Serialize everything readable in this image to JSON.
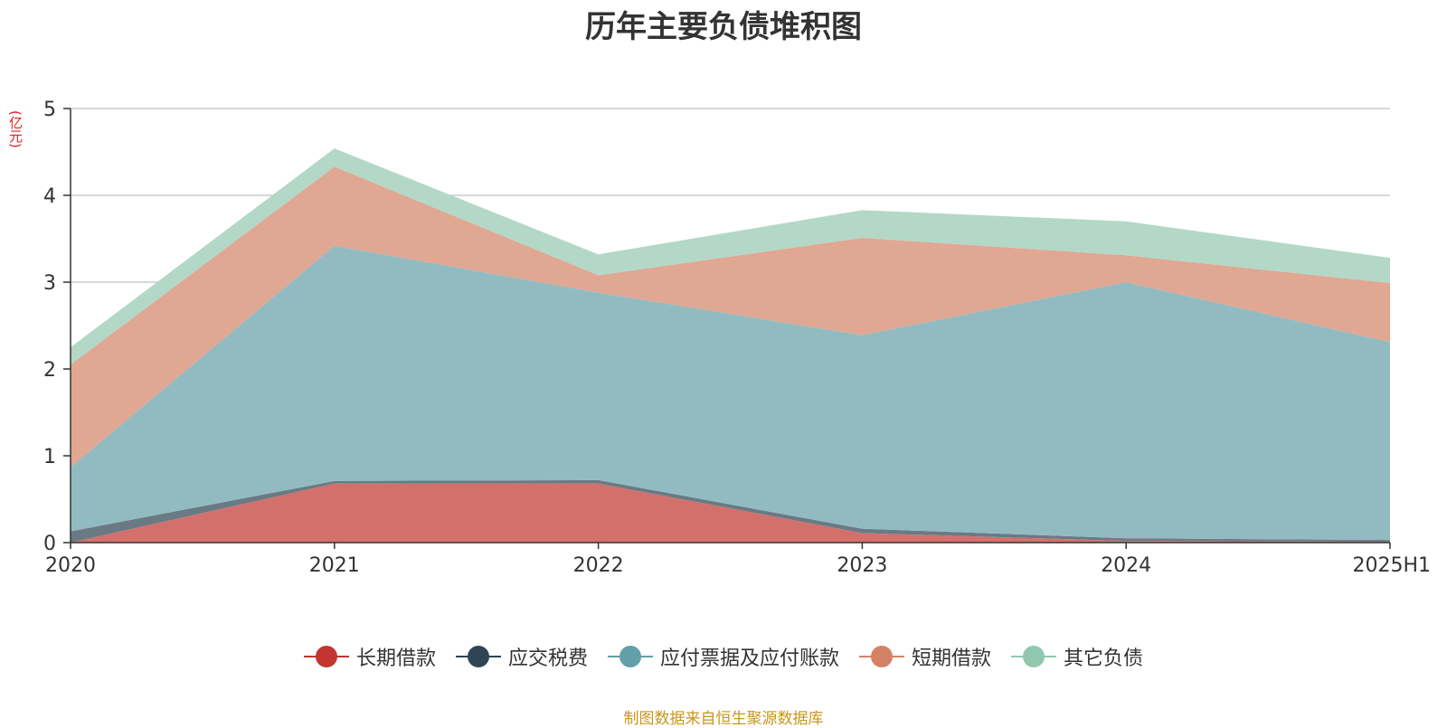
{
  "title": "历年主要负债堆积图",
  "unit_label": "(亿元)",
  "source_note": "制图数据来自恒生聚源数据库",
  "chart_data": {
    "type": "area",
    "stacked": true,
    "title": "历年主要负债堆积图",
    "ylabel": "(亿元)",
    "ylim": [
      0,
      5
    ],
    "yticks": [
      0,
      1,
      2,
      3,
      4,
      5
    ],
    "grid": true,
    "legend_position": "bottom",
    "categories": [
      "2020",
      "2021",
      "2022",
      "2023",
      "2024",
      "2025H1"
    ],
    "series": [
      {
        "name": "长期借款",
        "color": "#c23531",
        "fill": "#d4706c",
        "values": [
          0.0,
          0.68,
          0.68,
          0.11,
          0.02,
          0.01
        ]
      },
      {
        "name": "应交税费",
        "color": "#2f4554",
        "fill": "#6a7a84",
        "values": [
          0.13,
          0.03,
          0.04,
          0.05,
          0.03,
          0.02
        ]
      },
      {
        "name": "应付票据及应付账款",
        "color": "#61a0a8",
        "fill": "#92bbc1",
        "values": [
          0.74,
          2.71,
          2.16,
          2.23,
          2.95,
          2.28
        ]
      },
      {
        "name": "短期借款",
        "color": "#d48265",
        "fill": "#e0a793",
        "values": [
          1.18,
          0.91,
          0.2,
          1.12,
          0.31,
          0.68
        ]
      },
      {
        "name": "其它负债",
        "color": "#91c7ae",
        "fill": "#b3d8c7",
        "values": [
          0.2,
          0.21,
          0.24,
          0.32,
          0.39,
          0.29
        ]
      }
    ]
  }
}
